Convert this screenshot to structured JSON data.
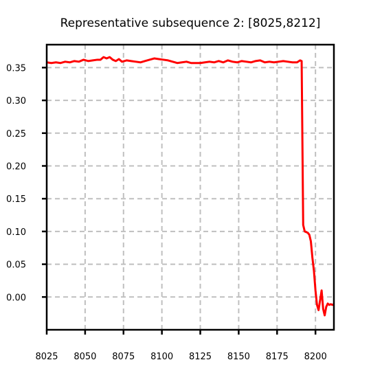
{
  "chart_data": {
    "type": "line",
    "title": "Representative subsequence 2: [8025,8212]",
    "xlabel": "",
    "ylabel": "",
    "xlim": [
      8025,
      8212
    ],
    "ylim": [
      -0.05,
      0.385
    ],
    "xticks": [
      8025,
      8050,
      8075,
      8100,
      8125,
      8150,
      8175,
      8200
    ],
    "xtick_labels": [
      "8025",
      "8050",
      "8075",
      "8100",
      "8125",
      "8150",
      "8175",
      "8200"
    ],
    "yticks": [
      0.0,
      0.05,
      0.1,
      0.15,
      0.2,
      0.25,
      0.3,
      0.35
    ],
    "ytick_labels": [
      "0.00",
      "0.05",
      "0.10",
      "0.15",
      "0.20",
      "0.25",
      "0.30",
      "0.35"
    ],
    "grid": true,
    "legend": "none",
    "series": [
      {
        "color": "#ff0000",
        "x": [
          8025,
          8028,
          8031,
          8034,
          8037,
          8040,
          8043,
          8046,
          8049,
          8052,
          8055,
          8058,
          8060,
          8062,
          8064,
          8066,
          8068,
          8070,
          8072,
          8074,
          8077,
          8080,
          8083,
          8086,
          8089,
          8092,
          8095,
          8098,
          8101,
          8104,
          8107,
          8110,
          8113,
          8116,
          8119,
          8122,
          8125,
          8128,
          8131,
          8134,
          8137,
          8140,
          8143,
          8146,
          8149,
          8152,
          8155,
          8158,
          8161,
          8164,
          8167,
          8170,
          8173,
          8176,
          8179,
          8182,
          8185,
          8188,
          8190,
          8191,
          8192,
          8193,
          8194,
          8195,
          8196,
          8197,
          8198,
          8199,
          8200,
          8201,
          8202,
          8203,
          8204,
          8205,
          8206,
          8207,
          8208,
          8209,
          8210,
          8211,
          8212
        ],
        "y": [
          0.358,
          0.357,
          0.358,
          0.357,
          0.359,
          0.358,
          0.36,
          0.359,
          0.362,
          0.36,
          0.361,
          0.362,
          0.362,
          0.366,
          0.364,
          0.366,
          0.362,
          0.36,
          0.363,
          0.359,
          0.361,
          0.36,
          0.359,
          0.358,
          0.36,
          0.362,
          0.364,
          0.363,
          0.362,
          0.361,
          0.359,
          0.357,
          0.358,
          0.359,
          0.357,
          0.357,
          0.357,
          0.358,
          0.359,
          0.358,
          0.36,
          0.358,
          0.361,
          0.359,
          0.358,
          0.36,
          0.359,
          0.358,
          0.36,
          0.361,
          0.358,
          0.359,
          0.358,
          0.359,
          0.36,
          0.359,
          0.358,
          0.358,
          0.361,
          0.36,
          0.11,
          0.1,
          0.099,
          0.098,
          0.095,
          0.085,
          0.06,
          0.04,
          0.01,
          -0.012,
          -0.02,
          -0.005,
          0.01,
          -0.018,
          -0.028,
          -0.015,
          -0.01,
          -0.012,
          -0.011,
          -0.012,
          -0.011
        ]
      }
    ]
  }
}
